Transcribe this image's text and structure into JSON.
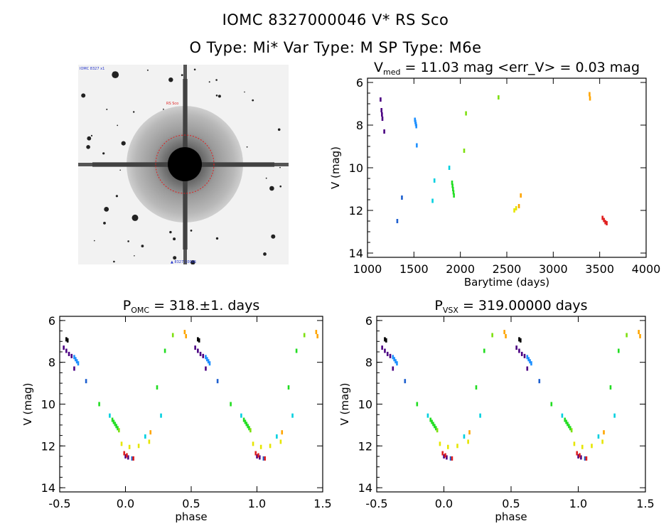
{
  "header": {
    "title_line1": "IOMC 8327000046    V* RS Sco",
    "title_line2": "O Type: Mi*   Var Type: M   SP Type: M6e"
  },
  "image_panel": {
    "kind": "sky-thumbnail",
    "corner_label": "IOMC 8327 x1 ",
    "center_label": "RS Sco",
    "bottom_label": "▲ 8327 C0046"
  },
  "chart_data": [
    {
      "type": "scatter",
      "id": "lightcurve",
      "title_main": "V",
      "title_sub": "med",
      "title_rest": " = 11.03 mag <err_V> = 0.03 mag",
      "xlabel": "Barytime (days)",
      "ylabel": "V (mag)",
      "xlim": [
        1000,
        4000
      ],
      "ylim": [
        14.2,
        5.8
      ],
      "xticks": [
        1000,
        1500,
        2000,
        2500,
        3000,
        3500,
        4000
      ],
      "yticks": [
        6,
        8,
        10,
        12,
        14
      ],
      "series": [
        {
          "color": "#4b0082",
          "points": [
            [
              1140,
              6.8
            ],
            [
              1150,
              7.3
            ],
            [
              1155,
              7.5
            ],
            [
              1160,
              7.7
            ],
            [
              1180,
              8.3
            ]
          ]
        },
        {
          "color": "#1e5fcf",
          "points": [
            [
              1320,
              12.5
            ],
            [
              1370,
              11.4
            ]
          ]
        },
        {
          "color": "#1e90ff",
          "points": [
            [
              1510,
              7.75
            ],
            [
              1515,
              7.85
            ],
            [
              1520,
              7.95
            ],
            [
              1525,
              8.05
            ],
            [
              1530,
              8.95
            ]
          ]
        },
        {
          "color": "#00d0e0",
          "points": [
            [
              1700,
              11.55
            ],
            [
              1720,
              10.6
            ],
            [
              1880,
              10.0
            ]
          ]
        },
        {
          "color": "#22dd22",
          "points": [
            [
              1910,
              10.7
            ],
            [
              1915,
              10.85
            ],
            [
              1920,
              11.0
            ],
            [
              1925,
              11.15
            ],
            [
              1930,
              11.3
            ]
          ]
        },
        {
          "color": "#7ee010",
          "points": [
            [
              2040,
              9.2
            ],
            [
              2060,
              7.45
            ],
            [
              2410,
              6.7
            ]
          ]
        },
        {
          "color": "#e6e600",
          "points": [
            [
              2580,
              12.0
            ],
            [
              2600,
              11.9
            ]
          ]
        },
        {
          "color": "#ffa500",
          "points": [
            [
              2630,
              11.8
            ],
            [
              2650,
              11.3
            ],
            [
              3390,
              6.55
            ],
            [
              3395,
              6.75
            ]
          ]
        },
        {
          "color": "#e02020",
          "points": [
            [
              3530,
              12.35
            ],
            [
              3545,
              12.45
            ],
            [
              3560,
              12.55
            ],
            [
              3575,
              12.6
            ]
          ]
        }
      ]
    },
    {
      "type": "scatter",
      "id": "phase-omc",
      "title_main": "P",
      "title_sub": "OMC",
      "title_rest": " = 318.±1. days",
      "xlabel": "phase",
      "ylabel": "V (mag)",
      "xlim": [
        -0.5,
        1.5
      ],
      "ylim": [
        14.2,
        5.8
      ],
      "xticks": [
        -0.5,
        0.0,
        0.5,
        1.0,
        1.5
      ],
      "yticks": [
        6,
        8,
        10,
        12,
        14
      ],
      "series": [
        {
          "color": "#000000",
          "points": [
            [
              -0.45,
              6.9
            ],
            [
              -0.44,
              6.95
            ]
          ]
        },
        {
          "color": "#4b0082",
          "points": [
            [
              -0.47,
              7.3
            ],
            [
              -0.45,
              7.45
            ],
            [
              -0.43,
              7.6
            ],
            [
              -0.41,
              7.7
            ],
            [
              -0.39,
              8.3
            ],
            [
              0.0,
              12.5
            ],
            [
              0.02,
              12.55
            ]
          ]
        },
        {
          "color": "#1e90ff",
          "points": [
            [
              -0.39,
              7.75
            ],
            [
              -0.38,
              7.85
            ],
            [
              -0.37,
              7.95
            ],
            [
              -0.36,
              8.05
            ]
          ]
        },
        {
          "color": "#1e5fcf",
          "points": [
            [
              -0.3,
              8.9
            ],
            [
              0.05,
              12.6
            ]
          ]
        },
        {
          "color": "#00d0e0",
          "points": [
            [
              -0.12,
              10.55
            ],
            [
              0.15,
              11.55
            ],
            [
              0.27,
              10.55
            ]
          ]
        },
        {
          "color": "#22dd22",
          "points": [
            [
              -0.2,
              10.0
            ],
            [
              -0.1,
              10.75
            ],
            [
              -0.09,
              10.85
            ],
            [
              -0.08,
              10.95
            ],
            [
              -0.07,
              11.05
            ],
            [
              -0.06,
              11.15
            ],
            [
              0.24,
              9.2
            ],
            [
              0.3,
              7.45
            ]
          ]
        },
        {
          "color": "#7ee010",
          "points": [
            [
              -0.05,
              11.25
            ],
            [
              0.36,
              6.7
            ]
          ]
        },
        {
          "color": "#e6e600",
          "points": [
            [
              -0.03,
              11.9
            ],
            [
              0.03,
              12.05
            ],
            [
              0.1,
              12.0
            ],
            [
              0.18,
              11.8
            ]
          ]
        },
        {
          "color": "#ffa500",
          "points": [
            [
              0.19,
              11.35
            ],
            [
              0.45,
              6.55
            ],
            [
              0.46,
              6.75
            ]
          ]
        },
        {
          "color": "#e02020",
          "points": [
            [
              -0.01,
              12.35
            ],
            [
              0.01,
              12.45
            ],
            [
              0.06,
              12.6
            ]
          ]
        }
      ]
    },
    {
      "type": "scatter",
      "id": "phase-vsx",
      "title_main": "P",
      "title_sub": "VSX",
      "title_rest": " = 319.00000 days",
      "xlabel": "phase",
      "ylabel": "V (mag)",
      "xlim": [
        -0.5,
        1.5
      ],
      "ylim": [
        14.2,
        5.8
      ],
      "xticks": [
        -0.5,
        0.0,
        0.5,
        1.0,
        1.5
      ],
      "yticks": [
        6,
        8,
        10,
        12,
        14
      ],
      "series": [
        {
          "color": "#000000",
          "points": [
            [
              -0.44,
              6.9
            ],
            [
              -0.43,
              6.95
            ]
          ]
        },
        {
          "color": "#4b0082",
          "points": [
            [
              -0.46,
              7.3
            ],
            [
              -0.44,
              7.45
            ],
            [
              -0.42,
              7.6
            ],
            [
              -0.4,
              7.7
            ],
            [
              -0.38,
              8.3
            ],
            [
              0.0,
              12.5
            ],
            [
              0.02,
              12.55
            ]
          ]
        },
        {
          "color": "#1e90ff",
          "points": [
            [
              -0.38,
              7.75
            ],
            [
              -0.37,
              7.85
            ],
            [
              -0.36,
              7.95
            ],
            [
              -0.35,
              8.05
            ]
          ]
        },
        {
          "color": "#1e5fcf",
          "points": [
            [
              -0.29,
              8.9
            ],
            [
              0.05,
              12.6
            ]
          ]
        },
        {
          "color": "#00d0e0",
          "points": [
            [
              -0.12,
              10.55
            ],
            [
              0.15,
              11.55
            ],
            [
              0.27,
              10.55
            ]
          ]
        },
        {
          "color": "#22dd22",
          "points": [
            [
              -0.2,
              10.0
            ],
            [
              -0.1,
              10.75
            ],
            [
              -0.09,
              10.85
            ],
            [
              -0.08,
              10.95
            ],
            [
              -0.07,
              11.05
            ],
            [
              -0.06,
              11.15
            ],
            [
              0.24,
              9.2
            ],
            [
              0.3,
              7.45
            ]
          ]
        },
        {
          "color": "#7ee010",
          "points": [
            [
              -0.05,
              11.25
            ],
            [
              0.36,
              6.7
            ]
          ]
        },
        {
          "color": "#e6e600",
          "points": [
            [
              -0.03,
              11.9
            ],
            [
              0.03,
              12.05
            ],
            [
              0.1,
              12.0
            ],
            [
              0.18,
              11.8
            ]
          ]
        },
        {
          "color": "#ffa500",
          "points": [
            [
              0.19,
              11.35
            ],
            [
              0.45,
              6.55
            ],
            [
              0.46,
              6.75
            ]
          ]
        },
        {
          "color": "#e02020",
          "points": [
            [
              -0.01,
              12.35
            ],
            [
              0.01,
              12.45
            ],
            [
              0.06,
              12.6
            ]
          ]
        }
      ]
    }
  ]
}
